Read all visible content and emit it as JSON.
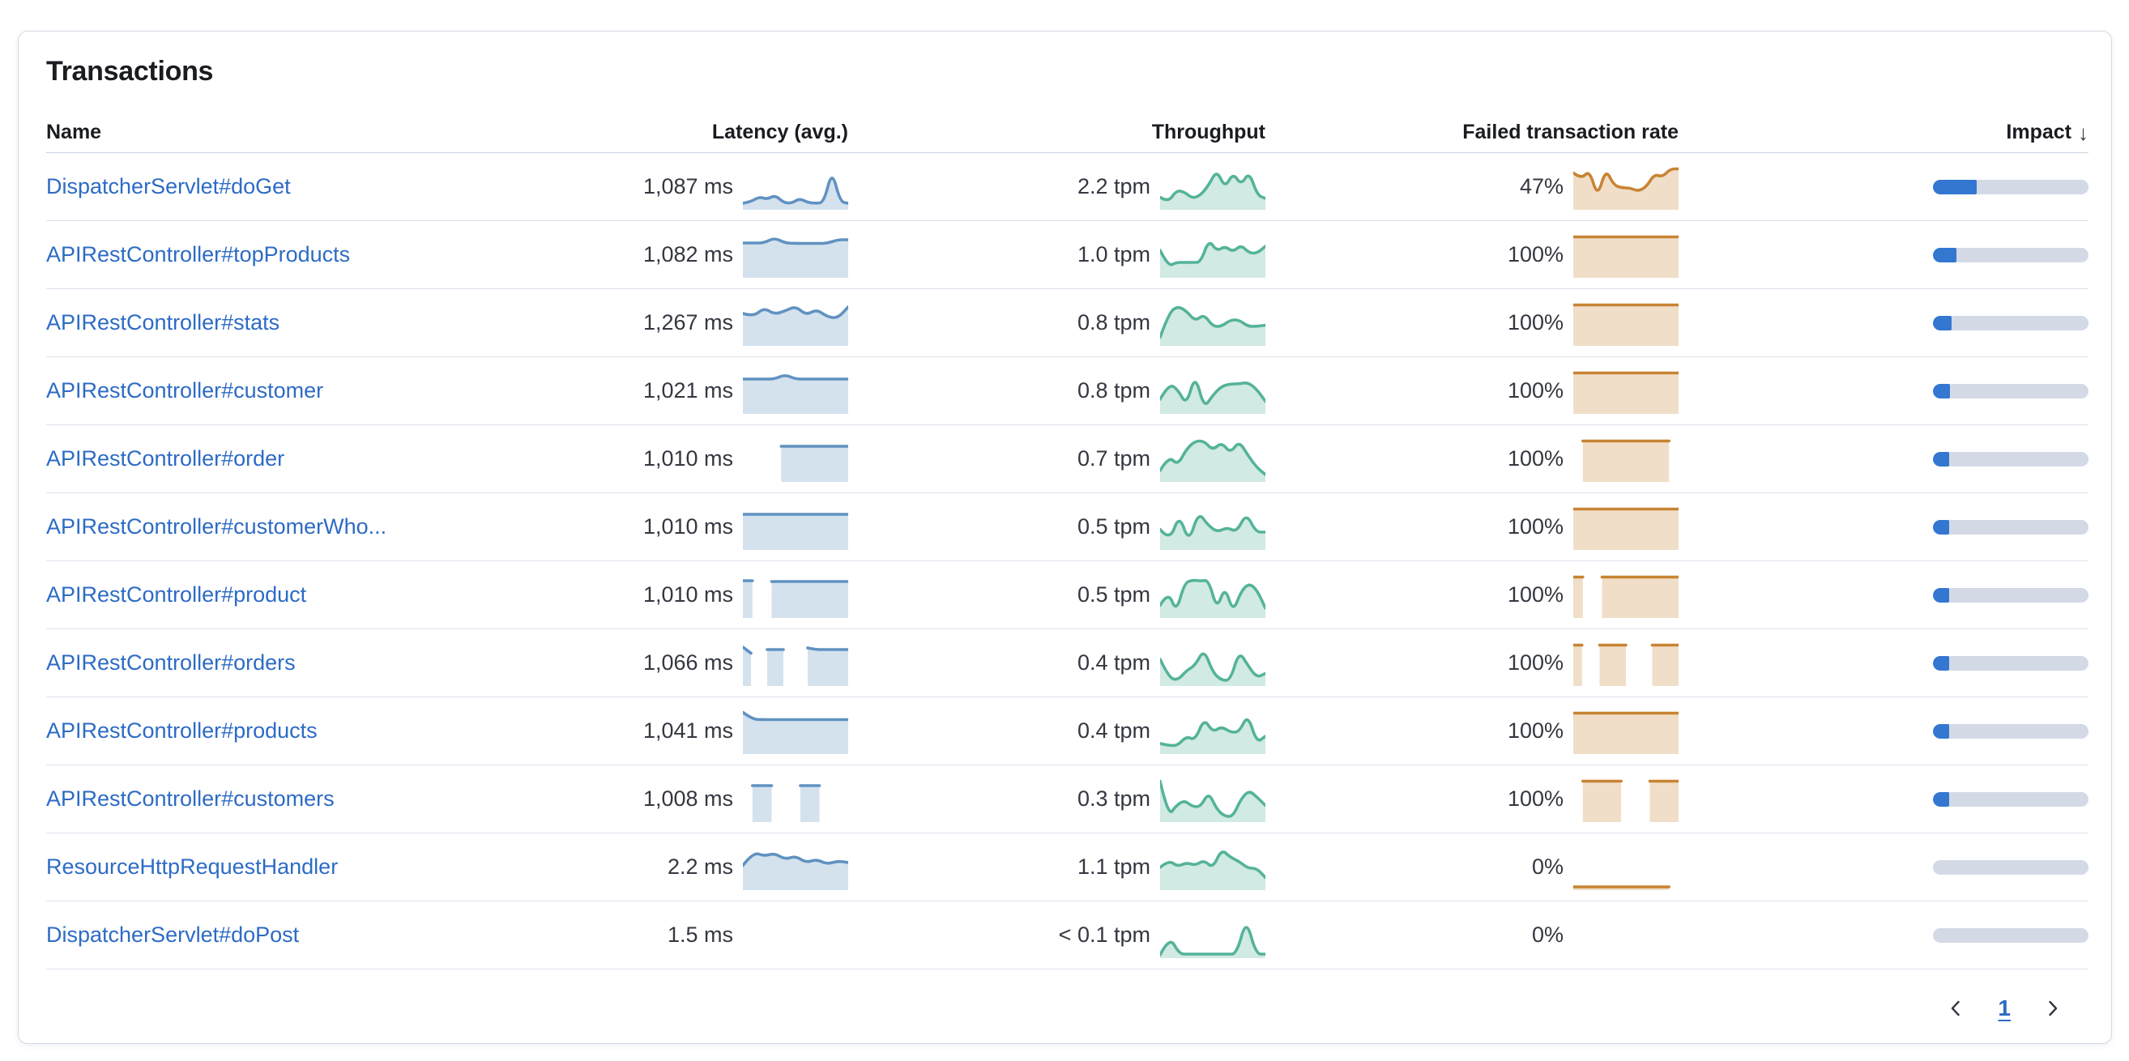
{
  "panel": {
    "title": "Transactions"
  },
  "table": {
    "columns": [
      {
        "key": "name",
        "label": "Name"
      },
      {
        "key": "latency",
        "label": "Latency (avg.)"
      },
      {
        "key": "throughput",
        "label": "Throughput"
      },
      {
        "key": "failed",
        "label": "Failed transaction rate"
      },
      {
        "key": "impact",
        "label": "Impact",
        "sorted": "desc",
        "sort_icon": "↓"
      }
    ],
    "rows": [
      {
        "name": "DispatcherServlet#doGet",
        "latency": {
          "value": "1,087 ms",
          "spark": [
            0.1,
            0.14,
            0.26,
            0.2,
            0.3,
            0.12,
            0.1,
            0.22,
            0.12,
            0.1,
            0.12,
            0.92,
            0.14,
            0.1
          ]
        },
        "throughput": {
          "value": "2.2 tpm",
          "spark": [
            0.25,
            0.12,
            0.42,
            0.38,
            0.22,
            0.3,
            0.55,
            0.92,
            0.48,
            0.85,
            0.55,
            0.88,
            0.3,
            0.22
          ]
        },
        "failed": {
          "value": "47%",
          "spark": [
            0.85,
            0.7,
            0.92,
            0.25,
            0.95,
            0.55,
            0.48,
            0.48,
            0.4,
            0.5,
            0.82,
            0.75,
            0.95,
            0.95
          ]
        },
        "impact": 0.28
      },
      {
        "name": "APIRestController#topProducts",
        "latency": {
          "value": "1,082 ms",
          "spark": [
            0.8,
            0.8,
            0.8,
            0.93,
            0.8,
            0.79,
            0.79,
            0.79,
            0.79,
            0.88,
            0.88
          ]
        },
        "throughput": {
          "value": "1.0 tpm",
          "spark": [
            0.62,
            0.22,
            0.32,
            0.32,
            0.32,
            0.32,
            0.88,
            0.6,
            0.72,
            0.58,
            0.75,
            0.55,
            0.55,
            0.72
          ]
        },
        "failed": {
          "value": "100%",
          "spark": [
            0.95,
            0.95,
            0.95,
            0.95,
            0.95,
            0.95,
            0.95,
            0.95,
            0.95,
            0.95,
            0.95,
            0.95
          ]
        },
        "impact": 0.15
      },
      {
        "name": "APIRestController#stats",
        "latency": {
          "value": "1,267 ms",
          "spark": [
            0.74,
            0.66,
            0.88,
            0.72,
            0.8,
            0.92,
            0.7,
            0.84,
            0.66,
            0.62,
            0.9
          ]
        },
        "throughput": {
          "value": "0.8 tpm",
          "spark": [
            0.15,
            0.75,
            0.92,
            0.8,
            0.55,
            0.72,
            0.42,
            0.42,
            0.58,
            0.58,
            0.42,
            0.42,
            0.45
          ]
        },
        "failed": {
          "value": "100%",
          "spark": [
            0.95,
            0.95,
            0.95,
            0.95,
            0.95,
            0.95,
            0.95,
            0.95,
            0.95,
            0.95,
            0.95,
            0.95
          ]
        },
        "impact": 0.12
      },
      {
        "name": "APIRestController#customer",
        "latency": {
          "value": "1,021 ms",
          "spark": [
            0.8,
            0.8,
            0.8,
            0.8,
            0.91,
            0.8,
            0.8,
            0.8,
            0.8,
            0.8,
            0.8
          ]
        },
        "throughput": {
          "value": "0.8 tpm",
          "spark": [
            0.3,
            0.68,
            0.55,
            0.15,
            0.92,
            0.08,
            0.4,
            0.62,
            0.68,
            0.68,
            0.72,
            0.55,
            0.25
          ]
        },
        "failed": {
          "value": "100%",
          "spark": [
            0.95,
            0.95,
            0.95,
            0.95,
            0.95,
            0.95,
            0.95,
            0.95,
            0.95,
            0.95,
            0.95,
            0.95
          ]
        },
        "impact": 0.11
      },
      {
        "name": "APIRestController#order",
        "latency": {
          "value": "1,010 ms",
          "spark": [
            null,
            null,
            null,
            null,
            0.82,
            0.82,
            0.82,
            0.82,
            0.82,
            0.82,
            0.82,
            0.82
          ]
        },
        "throughput": {
          "value": "0.7 tpm",
          "spark": [
            0.22,
            0.58,
            0.35,
            0.75,
            0.95,
            0.95,
            0.72,
            0.92,
            0.65,
            0.95,
            0.6,
            0.3,
            0.12
          ]
        },
        "failed": {
          "value": "100%",
          "spark": [
            null,
            0.95,
            0.95,
            0.95,
            0.95,
            0.95,
            0.95,
            0.95,
            0.95,
            0.95,
            0.95,
            null
          ]
        },
        "impact": 0.09
      },
      {
        "name": "APIRestController#customerWho...",
        "latency": {
          "value": "1,010 ms",
          "spark": [
            0.82,
            0.82,
            0.82,
            0.82,
            0.82,
            0.82,
            0.82,
            0.82,
            0.82,
            0.82,
            0.82,
            0.82
          ]
        },
        "throughput": {
          "value": "0.5 tpm",
          "spark": [
            0.45,
            0.15,
            0.82,
            0.12,
            0.88,
            0.55,
            0.38,
            0.5,
            0.38,
            0.85,
            0.38,
            0.38
          ]
        },
        "failed": {
          "value": "100%",
          "spark": [
            0.95,
            0.95,
            0.95,
            0.95,
            0.95,
            0.95,
            0.95,
            0.95,
            0.95,
            0.95,
            0.95,
            0.95
          ]
        },
        "impact": 0.08
      },
      {
        "name": "APIRestController#product",
        "latency": {
          "value": "1,010 ms",
          "spark": [
            0.86,
            0.86,
            null,
            0.84,
            0.84,
            0.84,
            0.84,
            0.84,
            0.84,
            0.84,
            0.84,
            0.84
          ]
        },
        "throughput": {
          "value": "0.5 tpm",
          "spark": [
            0.25,
            0.6,
            0.08,
            0.8,
            0.88,
            0.85,
            0.88,
            0.15,
            0.72,
            0.08,
            0.6,
            0.8,
            0.62,
            0.18
          ]
        },
        "failed": {
          "value": "100%",
          "spark": [
            0.95,
            0.95,
            null,
            0.95,
            0.95,
            0.95,
            0.95,
            0.95,
            0.95,
            0.95,
            0.95,
            0.95
          ]
        },
        "impact": 0.08
      },
      {
        "name": "APIRestController#orders",
        "latency": {
          "value": "1,066 ms",
          "spark": [
            0.9,
            0.75,
            null,
            0.84,
            0.84,
            0.84,
            null,
            null,
            0.88,
            0.84,
            0.84,
            0.84,
            0.84,
            0.84
          ]
        },
        "throughput": {
          "value": "0.4 tpm",
          "spark": [
            0.6,
            0.15,
            0.08,
            0.32,
            0.45,
            0.85,
            0.28,
            0.08,
            0.08,
            0.8,
            0.45,
            0.15,
            0.25
          ]
        },
        "failed": {
          "value": "100%",
          "spark": [
            0.95,
            0.95,
            null,
            0.95,
            0.95,
            0.95,
            0.95,
            null,
            null,
            0.95,
            0.95,
            0.95,
            0.95
          ]
        },
        "impact": 0.07
      },
      {
        "name": "APIRestController#products",
        "latency": {
          "value": "1,041 ms",
          "spark": [
            0.97,
            0.8,
            0.79,
            0.79,
            0.79,
            0.79,
            0.79,
            0.79,
            0.79,
            0.79,
            0.79,
            0.79
          ]
        },
        "throughput": {
          "value": "0.4 tpm",
          "spark": [
            0.2,
            0.15,
            0.15,
            0.38,
            0.28,
            0.82,
            0.48,
            0.62,
            0.48,
            0.48,
            0.92,
            0.22,
            0.38
          ]
        },
        "failed": {
          "value": "100%",
          "spark": [
            0.95,
            0.95,
            0.95,
            0.95,
            0.95,
            0.95,
            0.95,
            0.95,
            0.95,
            0.95,
            0.95,
            0.95
          ]
        },
        "impact": 0.07
      },
      {
        "name": "APIRestController#customers",
        "latency": {
          "value": "1,008 ms",
          "spark": [
            null,
            0.84,
            0.84,
            0.84,
            null,
            null,
            0.84,
            0.84,
            0.84,
            null,
            null,
            null
          ]
        },
        "throughput": {
          "value": "0.3 tpm",
          "spark": [
            0.95,
            0.08,
            0.35,
            0.48,
            0.32,
            0.32,
            0.68,
            0.25,
            0.08,
            0.08,
            0.52,
            0.72,
            0.55,
            0.35
          ]
        },
        "failed": {
          "value": "100%",
          "spark": [
            null,
            0.95,
            0.95,
            0.95,
            0.95,
            0.95,
            null,
            null,
            0.95,
            0.95,
            0.95,
            0.95
          ]
        },
        "impact": 0.06
      },
      {
        "name": "ResourceHttpRequestHandler",
        "latency": {
          "value": "2.2 ms",
          "spark": [
            0.55,
            0.88,
            0.78,
            0.85,
            0.7,
            0.78,
            0.62,
            0.7,
            0.58,
            0.66,
            0.62
          ]
        },
        "throughput": {
          "value": "1.1 tpm",
          "spark": [
            0.5,
            0.68,
            0.52,
            0.62,
            0.55,
            0.68,
            0.48,
            0.95,
            0.75,
            0.65,
            0.48,
            0.48,
            0.25
          ]
        },
        "failed": {
          "value": "0%",
          "spark": [
            0.02,
            0.02,
            0.02,
            0.02,
            0.02,
            0.02,
            0.02,
            0.02,
            0.02,
            0.02,
            0.02,
            null
          ]
        },
        "impact": 0
      },
      {
        "name": "DispatcherServlet#doPost",
        "latency": {
          "value": "1.5 ms",
          "spark": null
        },
        "throughput": {
          "value": "< 0.1 tpm",
          "spark": [
            0.02,
            0.48,
            0.04,
            0.04,
            0.04,
            0.04,
            0.04,
            0.04,
            0.04,
            0.92,
            0.04,
            0.04
          ]
        },
        "failed": {
          "value": "0%",
          "spark": null
        },
        "impact": 0
      }
    ]
  },
  "pagination": {
    "prev_icon": "chevron-left",
    "current_page": "1",
    "next_icon": "chevron-right"
  },
  "colors": {
    "link_blue": "#2d6bc5",
    "impact_bar_fill": "#3377d1",
    "impact_bar_track": "#d3dae6",
    "sparkline_latency": "#6092c0",
    "sparkline_throughput": "#54b399",
    "sparkline_failed_rate": "#c88433",
    "text_dark": "#343741",
    "row_border": "#dbe1ec"
  }
}
